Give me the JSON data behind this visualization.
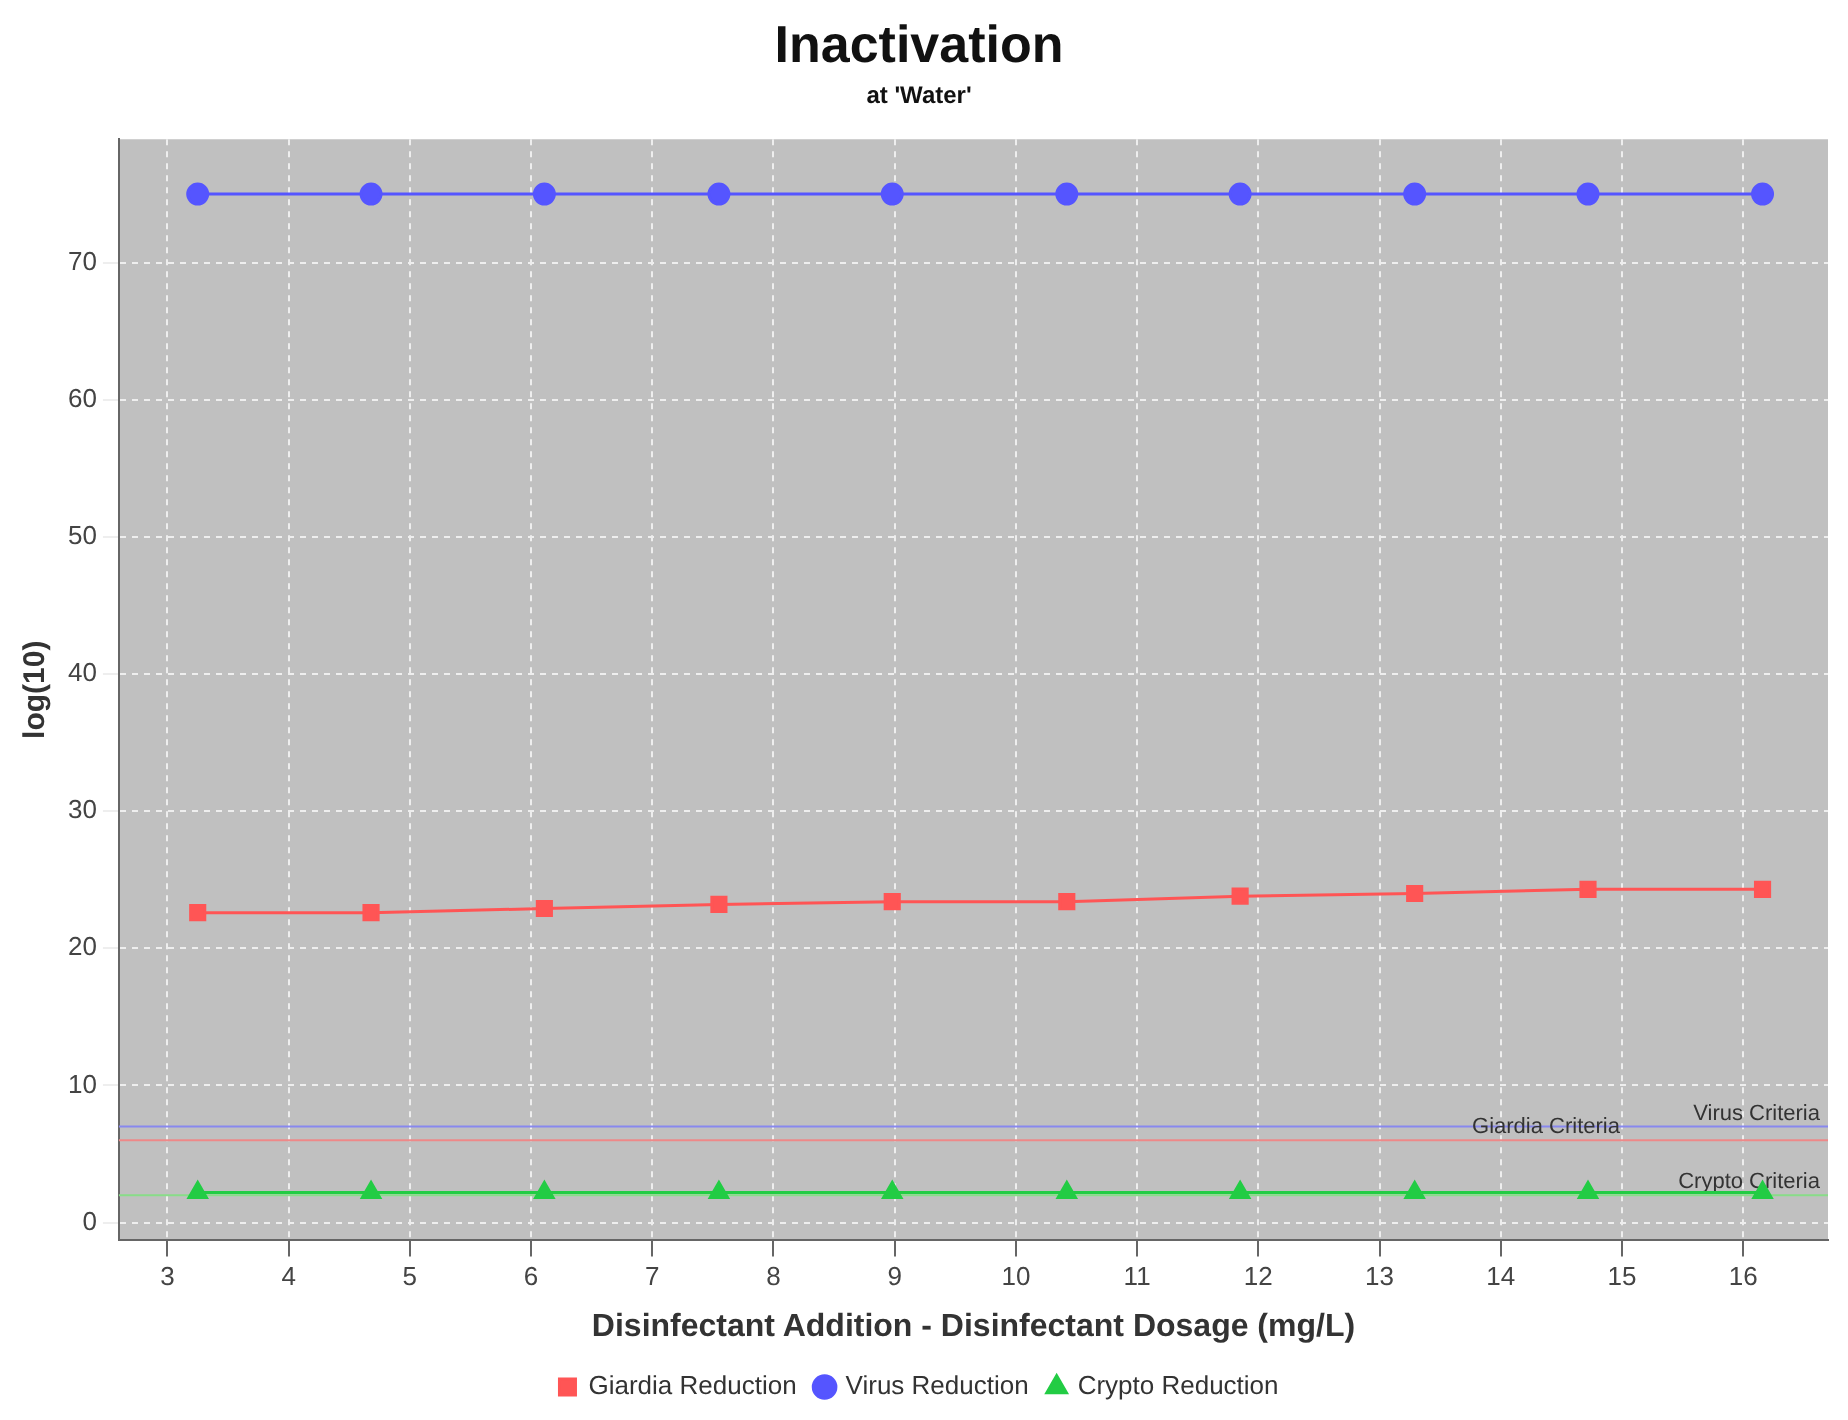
{
  "chart_data": {
    "type": "line",
    "title": "Inactivation",
    "subtitle": "at 'Water'",
    "xlabel": "Disinfectant Addition - Disinfectant Dosage (mg/L)",
    "ylabel": "log(10)",
    "x": [
      3.25,
      4.68,
      6.11,
      7.55,
      8.98,
      10.42,
      11.85,
      13.29,
      14.72,
      16.16
    ],
    "series": [
      {
        "name": "Giardia Reduction",
        "color": "#ff5555",
        "marker": "square",
        "values": [
          22.6,
          22.6,
          22.9,
          23.2,
          23.4,
          23.4,
          23.8,
          24.0,
          24.3,
          24.3
        ]
      },
      {
        "name": "Virus Reduction",
        "color": "#5555ff",
        "marker": "circle",
        "values": [
          75,
          75,
          75,
          75,
          75,
          75,
          75,
          75,
          75,
          75
        ]
      },
      {
        "name": "Crypto Reduction",
        "color": "#22cc44",
        "marker": "triangle",
        "values": [
          2.2,
          2.2,
          2.2,
          2.2,
          2.2,
          2.2,
          2.2,
          2.2,
          2.2,
          2.2
        ]
      }
    ],
    "ref_lines": [
      {
        "axis": "y",
        "value": 7,
        "label": "Virus Criteria",
        "color": "#8888ee"
      },
      {
        "axis": "y",
        "value": 6,
        "label": "Giardia Criteria",
        "color": "#ee8888"
      },
      {
        "axis": "y",
        "value": 2,
        "label": "Crypto Criteria",
        "color": "#88dd88"
      }
    ],
    "xlim": [
      2.6,
      16.7
    ],
    "ylim": [
      -1.3,
      79
    ],
    "xticks": [
      3,
      4,
      5,
      6,
      7,
      8,
      9,
      10,
      11,
      12,
      13,
      14,
      15,
      16
    ],
    "yticks": [
      0,
      10,
      20,
      30,
      40,
      50,
      60,
      70
    ],
    "grid": true,
    "legend": "bottom",
    "line_style": "solid"
  }
}
